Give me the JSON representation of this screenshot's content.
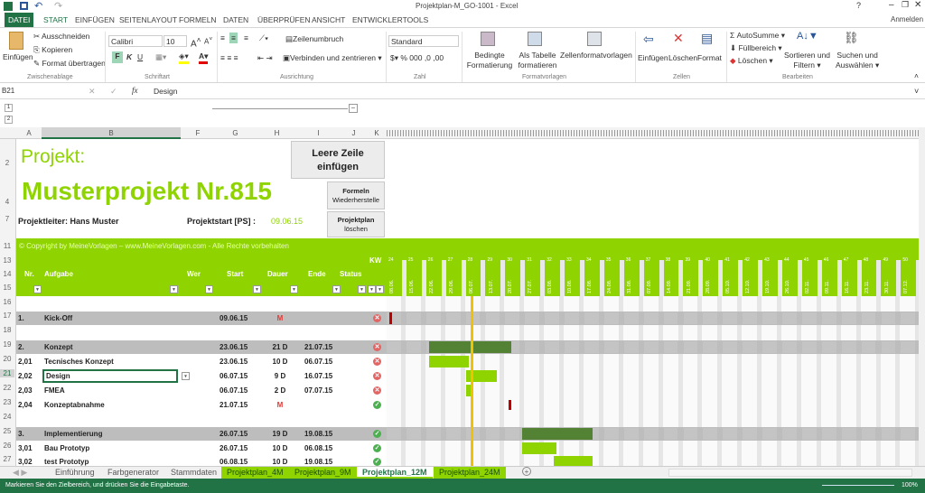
{
  "window": {
    "title": "Projektplan-M_GO-1001 - Excel",
    "help": "?",
    "account": "Anmelden"
  },
  "menu": [
    "DATEI",
    "START",
    "EINFÜGEN",
    "SEITENLAYOUT",
    "FORMELN",
    "DATEN",
    "ÜBERPRÜFEN",
    "ANSICHT",
    "ENTWICKLERTOOLS"
  ],
  "ribbon": {
    "paste": "Einfügen",
    "cut": "Ausschneiden",
    "copy": "Kopieren",
    "format_painter": "Format übertragen",
    "clipboard_group": "Zwischenablage",
    "font": "Calibri",
    "font_size": "10",
    "bold": "F",
    "italic": "K",
    "underline": "U",
    "font_group": "Schriftart",
    "wrap": "Zeilenumbruch",
    "merge": "Verbinden und zentrieren",
    "align_group": "Ausrichtung",
    "number_format": "Standard",
    "number_group": "Zahl",
    "cond_format": [
      "Bedingte",
      "Formatierung"
    ],
    "as_table": [
      "Als Tabelle",
      "formatieren"
    ],
    "cell_styles": "Zellenformatvorlagen",
    "styles_group": "Formatvorlagen",
    "insert": "Einfügen",
    "delete": "Löschen",
    "format": "Format",
    "cells_group": "Zellen",
    "autosum": "AutoSumme",
    "fill": "Füllbereich",
    "clear": "Löschen",
    "sort": [
      "Sortieren und",
      "Filtern"
    ],
    "find": [
      "Suchen und",
      "Auswählen"
    ],
    "edit_group": "Bearbeiten"
  },
  "formula_bar": {
    "cell_ref": "B21",
    "fx": "fx",
    "value": "Design"
  },
  "columns": [
    "A",
    "B",
    "F",
    "G",
    "H",
    "I",
    "J",
    "K"
  ],
  "row_numbers": [
    "2",
    "4",
    "7",
    "11",
    "13",
    "14",
    "15",
    "16",
    "17",
    "18",
    "19",
    "20",
    "21",
    "22",
    "23",
    "24",
    "25",
    "26",
    "27"
  ],
  "header": {
    "label": "Projekt:",
    "project_name": "Musterprojekt Nr.815",
    "leader": "Projektleiter: Hans Muster",
    "start_label": "Projektstart [PS] :",
    "start_value": "09.06.15",
    "btn_insert_row": [
      "Leere Zeile",
      "einfügen"
    ],
    "btn_restore": [
      "Formeln",
      "Wiederherstelle"
    ],
    "btn_delete": [
      "Projektplan",
      "löschen"
    ]
  },
  "copyright": "© Copyright by MeineVorlagen – www.MeineVorlagen.com - Alle Rechte vorbehalten",
  "table_headers": {
    "nr": "Nr.",
    "task": "Aufgabe",
    "who": "Wer",
    "start": "Start",
    "duration": "Dauer",
    "end": "Ende",
    "status": "Status",
    "kw": "KW"
  },
  "weeks": {
    "kw": [
      "24",
      "25",
      "26",
      "27",
      "28",
      "29",
      "30",
      "31",
      "32",
      "33",
      "34",
      "35",
      "36",
      "37",
      "38",
      "39",
      "40",
      "41",
      "42",
      "43",
      "44",
      "45",
      "46",
      "47",
      "48",
      "49",
      "50"
    ],
    "dates": [
      "08.06.",
      "15.06.",
      "22.06.",
      "29.06.",
      "06.07.",
      "13.07.",
      "20.07.",
      "27.07.",
      "03.08.",
      "10.08.",
      "17.08.",
      "24.08.",
      "31.08.",
      "07.09.",
      "14.09.",
      "21.09.",
      "28.09.",
      "05.10.",
      "12.10.",
      "19.10.",
      "26.10.",
      "02.11.",
      "09.11.",
      "16.11.",
      "23.11.",
      "30.11.",
      "07.12."
    ]
  },
  "tasks": [
    {
      "row": "17",
      "nr": "1.",
      "name": "Kick-Off",
      "start": "09.06.15",
      "duration": "M",
      "end": "",
      "status": "late",
      "summary": true,
      "milestone": true
    },
    {
      "row": "19",
      "nr": "2.",
      "name": "Konzept",
      "start": "23.06.15",
      "duration": "21 D",
      "end": "21.07.15",
      "status": "late",
      "summary": true
    },
    {
      "row": "20",
      "nr": "2,01",
      "name": "Tecnisches Konzept",
      "start": "23.06.15",
      "duration": "10 D",
      "end": "06.07.15",
      "status": "late"
    },
    {
      "row": "21",
      "nr": "2,02",
      "name": "Design",
      "start": "06.07.15",
      "duration": "9 D",
      "end": "16.07.15",
      "status": "late",
      "selected": true
    },
    {
      "row": "22",
      "nr": "2,03",
      "name": "FMEA",
      "start": "06.07.15",
      "duration": "2 D",
      "end": "07.07.15",
      "status": "late"
    },
    {
      "row": "23",
      "nr": "2,04",
      "name": "Konzeptabnahme",
      "start": "21.07.15",
      "duration": "M",
      "end": "",
      "status": "ok",
      "milestone": true
    },
    {
      "row": "25",
      "nr": "3.",
      "name": "Implementierung",
      "start": "26.07.15",
      "duration": "19 D",
      "end": "19.08.15",
      "status": "ok",
      "summary": true
    },
    {
      "row": "26",
      "nr": "3,01",
      "name": "Bau Prototyp",
      "start": "26.07.15",
      "duration": "10 D",
      "end": "06.08.15",
      "status": "ok"
    },
    {
      "row": "27",
      "nr": "3,02",
      "name": "test Prototyp",
      "start": "06.08.15",
      "duration": "10 D",
      "end": "19.08.15",
      "status": "ok"
    }
  ],
  "sheet_tabs": [
    "Einführung",
    "Farbgenerator",
    "Stammdaten",
    "Projektplan_4M",
    "Projektplan_9M",
    "Projektplan_12M",
    "Projektplan_24M"
  ],
  "active_sheet": "Projektplan_12M",
  "status_bar": {
    "message": "Markieren Sie den Zielbereich, und drücken Sie die Eingabetaste.",
    "zoom": "100%"
  },
  "colors": {
    "green": "#8fd400",
    "dark_green": "#548235",
    "excel_green": "#217346",
    "milestone": "#c00000",
    "today": "#f2c200",
    "late": "#e06666",
    "ok": "#4caf50"
  }
}
